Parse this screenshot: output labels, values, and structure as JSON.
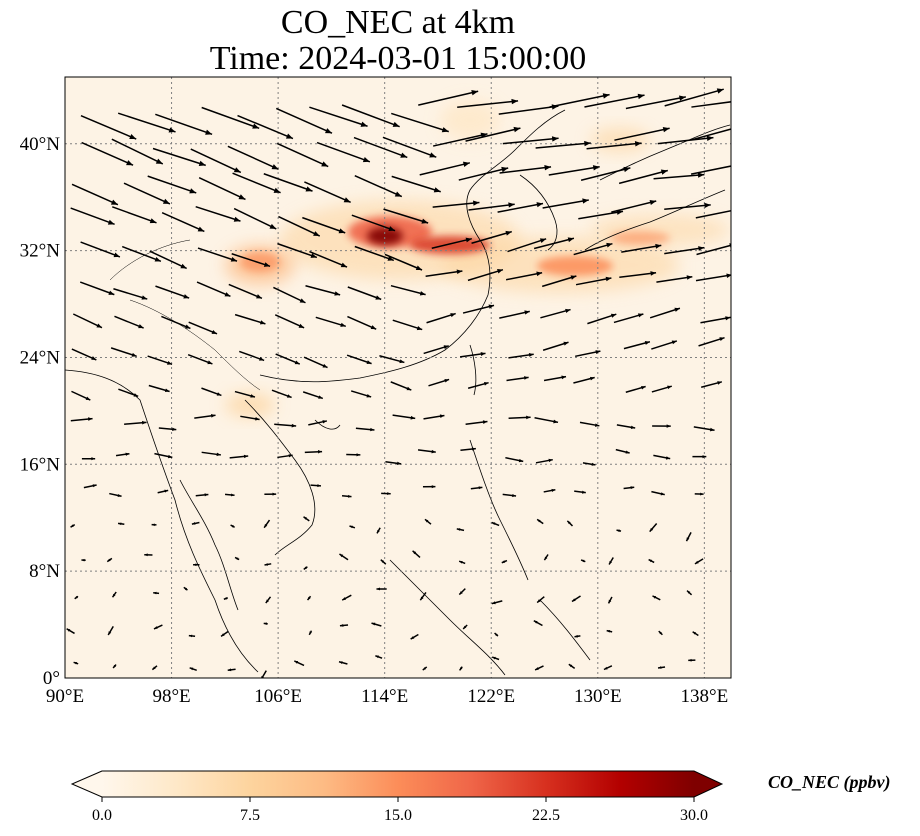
{
  "map": {
    "title_line1": "CO_NEC at 4km",
    "title_line2": "Time: 2024-03-01 15:00:00",
    "lon_labels": [
      "90°E",
      "98°E",
      "106°E",
      "114°E",
      "122°E",
      "130°E",
      "138°E"
    ],
    "lat_labels": [
      "0°",
      "8°N",
      "16°N",
      "24°N",
      "32°N",
      "40°N"
    ],
    "lon_ticks_deg": [
      90,
      98,
      106,
      114,
      122,
      130,
      138
    ],
    "lat_ticks_deg": [
      0,
      8,
      16,
      24,
      32,
      40
    ],
    "extent": {
      "lon_min": 90,
      "lon_max": 140,
      "lat_min": 0,
      "lat_max": 45
    },
    "gridlines": "dotted",
    "background_colour": "#fdf3e5",
    "colormap": "OrRd",
    "plumes": [
      {
        "lon": 114.5,
        "lat": 33.0,
        "value": 30
      },
      {
        "lon": 119.0,
        "lat": 32.5,
        "value": 24
      },
      {
        "lon": 127.5,
        "lat": 30.5,
        "value": 18
      },
      {
        "lon": 105.0,
        "lat": 31.0,
        "value": 10
      },
      {
        "lon": 104.0,
        "lat": 20.5,
        "value": 6
      }
    ]
  },
  "colorbar": {
    "label": "CO_NEC (ppbv)",
    "tick_labels": [
      "0.0",
      "7.5",
      "15.0",
      "22.5",
      "30.0"
    ],
    "min": 0,
    "max": 30,
    "extend": "both",
    "colors": [
      "#fff7ec",
      "#fee8c8",
      "#fdd49e",
      "#fdbb84",
      "#fc8d59",
      "#ef6548",
      "#d7301f",
      "#b30000",
      "#7f0000"
    ]
  },
  "wind": {
    "description_units": "vector arrows"
  }
}
